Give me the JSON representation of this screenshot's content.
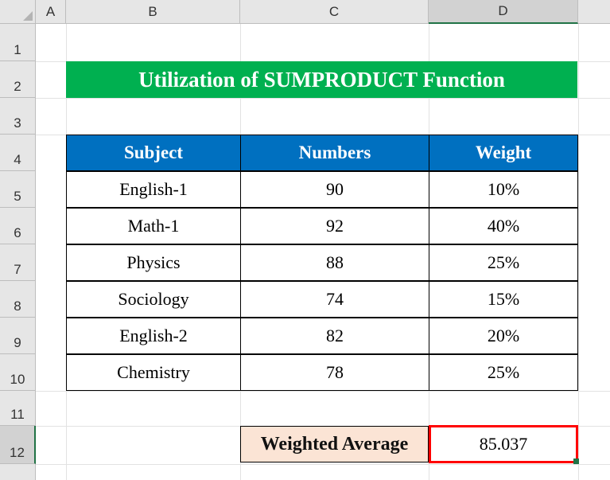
{
  "columns": [
    "A",
    "B",
    "C",
    "D"
  ],
  "rows": [
    "1",
    "2",
    "3",
    "4",
    "5",
    "6",
    "7",
    "8",
    "9",
    "10",
    "11",
    "12"
  ],
  "title": "Utilization of SUMPRODUCT Function",
  "table": {
    "headers": [
      "Subject",
      "Numbers",
      "Weight"
    ],
    "rows": [
      [
        "English-1",
        "90",
        "10%"
      ],
      [
        "Math-1",
        "92",
        "40%"
      ],
      [
        "Physics",
        "88",
        "25%"
      ],
      [
        "Sociology",
        "74",
        "15%"
      ],
      [
        "English-2",
        "82",
        "20%"
      ],
      [
        "Chemistry",
        "78",
        "25%"
      ]
    ]
  },
  "result": {
    "label": "Weighted Average",
    "value": "85.037"
  },
  "colors": {
    "title_bg": "#00b050",
    "header_bg": "#0070c0",
    "label_bg": "#fbe4d5",
    "highlight_border": "#ff0000"
  }
}
